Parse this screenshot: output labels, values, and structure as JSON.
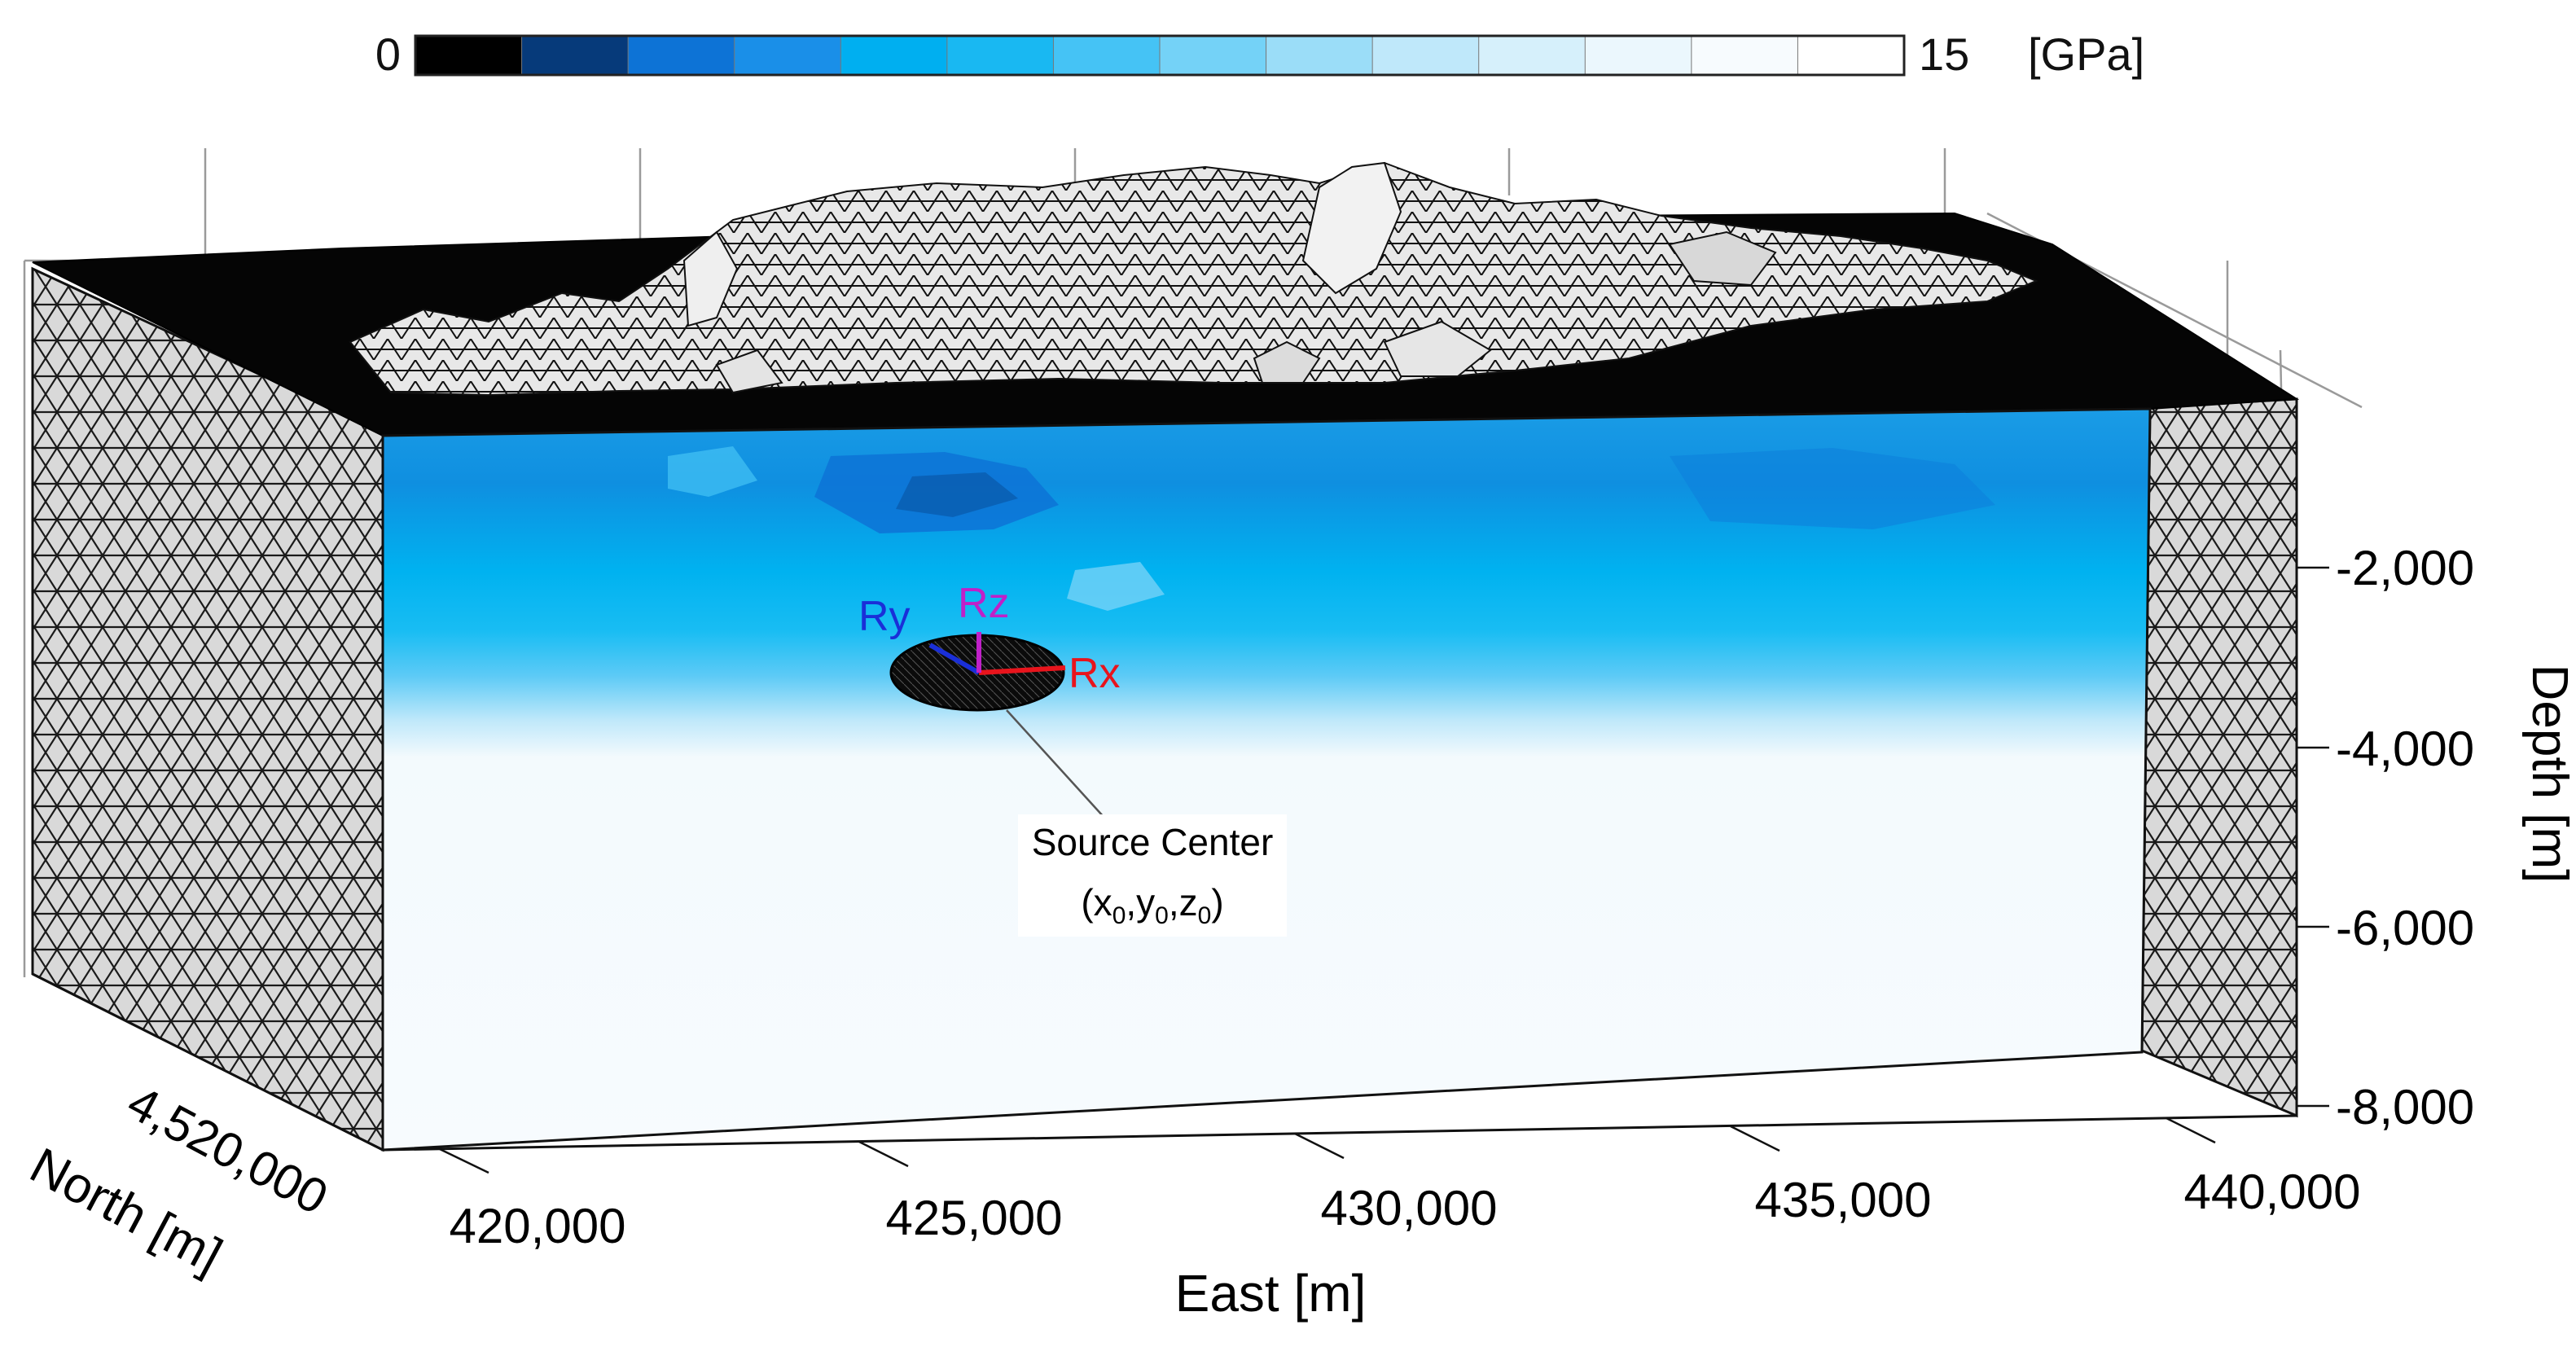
{
  "colorbar": {
    "min_label": "0",
    "max_label": "15",
    "unit": "[GPa]",
    "min_value": 0,
    "max_value": 15,
    "colors": [
      "#000000",
      "#063a7a",
      "#0d73d6",
      "#1a8fe8",
      "#00aff0",
      "#19b8f2",
      "#45c3f5",
      "#74d2f7",
      "#9bddf8",
      "#bfe8fa",
      "#d6f0fb",
      "#ebf7fd",
      "#f7fbfe",
      "#ffffff"
    ]
  },
  "axes": {
    "east": {
      "label": "East [m]",
      "ticks": [
        "420,000",
        "425,000",
        "430,000",
        "435,000",
        "440,000"
      ]
    },
    "north": {
      "label": "North [m]",
      "ticks": [
        "4,520,000"
      ]
    },
    "depth": {
      "label": "Depth [m]",
      "ticks": [
        "-2,000",
        "-4,000",
        "-6,000",
        "-8,000"
      ]
    }
  },
  "source": {
    "label_line1": "Source Center",
    "label_line2": "(x",
    "sub": "0",
    "comma": ",",
    "y": "y",
    "z": "z",
    "close": ")",
    "rx_label": "Rx",
    "ry_label": "Ry",
    "rz_label": "Rz",
    "rx_color": "#e8141c",
    "ry_color": "#1a2fd8",
    "rz_color": "#c020c8"
  }
}
